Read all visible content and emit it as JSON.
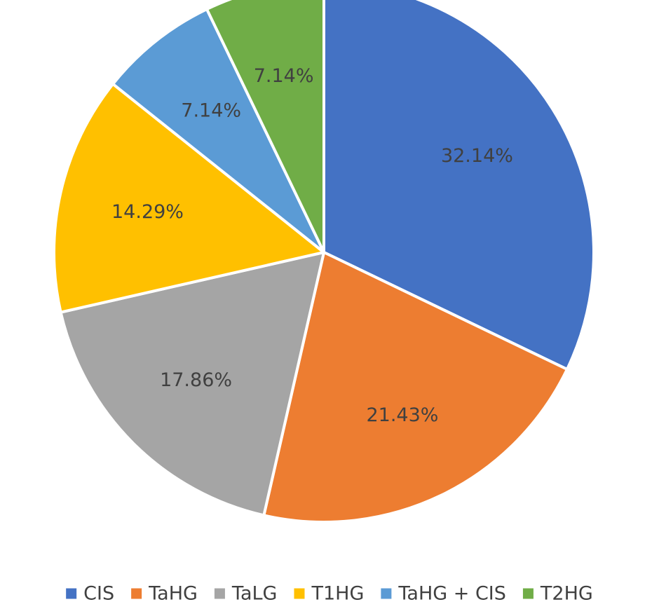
{
  "chart_data": {
    "type": "pie",
    "title": "",
    "legend_position": "bottom",
    "series": [
      {
        "categories": [
          "CIS",
          "TaHG",
          "TaLG",
          "T1HG",
          "TaHG + CIS",
          "T2HG"
        ],
        "values": [
          32.14,
          21.43,
          17.86,
          14.29,
          7.14,
          7.14
        ],
        "labels": [
          "32.14%",
          "21.43%",
          "17.86%",
          "14.29%",
          "7.14%",
          "7.14%"
        ],
        "colors": [
          "#4472C4",
          "#ED7D31",
          "#A5A5A5",
          "#FFC000",
          "#5B9BD5",
          "#70AD47"
        ]
      }
    ]
  }
}
